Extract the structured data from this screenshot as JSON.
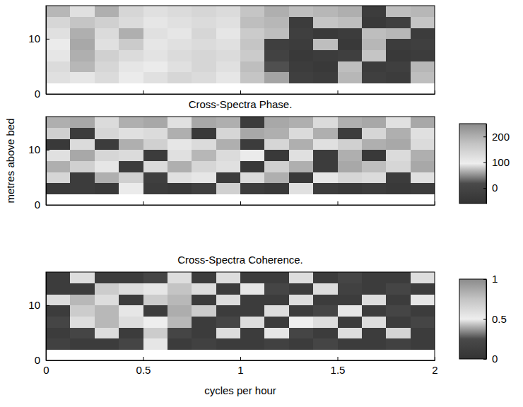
{
  "chart_data": [
    {
      "type": "heatmap",
      "x": [
        0.0625,
        0.1875,
        0.3125,
        0.4375,
        0.5625,
        0.6875,
        0.8125,
        0.9375,
        1.0625,
        1.1875,
        1.3125,
        1.4375,
        1.5625,
        1.6875,
        1.8125,
        1.9375
      ],
      "y": [
        3,
        5,
        7,
        9,
        11,
        13,
        15
      ],
      "values": [
        [
          120,
          110,
          130,
          100,
          120,
          140,
          130,
          110,
          170,
          60,
          -20,
          -30,
          190,
          -20,
          -30,
          180
        ],
        [
          130,
          190,
          140,
          110,
          100,
          120,
          140,
          120,
          180,
          20,
          -30,
          -40,
          180,
          -30,
          -20,
          190
        ],
        [
          110,
          200,
          150,
          130,
          90,
          130,
          140,
          130,
          160,
          -10,
          -40,
          -30,
          -20,
          170,
          -40,
          -30
        ],
        [
          100,
          210,
          120,
          160,
          110,
          120,
          130,
          120,
          170,
          -20,
          -30,
          180,
          -40,
          190,
          -30,
          -20
        ],
        [
          120,
          200,
          130,
          200,
          120,
          110,
          140,
          110,
          160,
          180,
          -20,
          -40,
          -30,
          180,
          190,
          -30
        ],
        [
          140,
          170,
          150,
          130,
          110,
          120,
          130,
          120,
          180,
          190,
          -30,
          170,
          180,
          -40,
          -20,
          170
        ],
        [
          190,
          120,
          200,
          140,
          120,
          130,
          140,
          130,
          170,
          200,
          180,
          190,
          200,
          -30,
          180,
          190
        ]
      ],
      "xlim": [
        0,
        2
      ],
      "ylim": [
        0,
        16
      ],
      "xticks": [
        0,
        0.5,
        1,
        1.5,
        2
      ],
      "yticks": [
        0,
        10
      ],
      "zlim": [
        -60,
        250
      ],
      "tick_labels": "y"
    },
    {
      "type": "heatmap",
      "title": "Cross-Spectra Phase.",
      "ylabel": "metres above bed",
      "x": [
        0.0625,
        0.1875,
        0.3125,
        0.4375,
        0.5625,
        0.6875,
        0.8125,
        0.9375,
        1.0625,
        1.1875,
        1.3125,
        1.4375,
        1.5625,
        1.6875,
        1.8125,
        1.9375
      ],
      "y": [
        3,
        5,
        7,
        9,
        11,
        13,
        15
      ],
      "values": [
        [
          -40,
          -30,
          -40,
          100,
          -30,
          -40,
          -20,
          150,
          -30,
          -40,
          120,
          -30,
          -40,
          -30,
          -40,
          -30
        ],
        [
          140,
          -30,
          200,
          150,
          -20,
          120,
          110,
          -30,
          130,
          200,
          -40,
          110,
          140,
          130,
          -30,
          120
        ],
        [
          200,
          150,
          110,
          -30,
          130,
          200,
          140,
          120,
          -40,
          150,
          200,
          -30,
          210,
          180,
          140,
          210
        ],
        [
          120,
          210,
          140,
          130,
          -30,
          120,
          190,
          130,
          100,
          -40,
          120,
          -30,
          200,
          -40,
          130,
          200
        ],
        [
          -40,
          130,
          -30,
          200,
          150,
          110,
          130,
          200,
          -30,
          140,
          200,
          120,
          150,
          200,
          210,
          130
        ],
        [
          150,
          -30,
          140,
          120,
          130,
          200,
          -40,
          140,
          210,
          200,
          130,
          200,
          -30,
          140,
          200,
          120
        ],
        [
          200,
          210,
          130,
          200,
          210,
          120,
          210,
          200,
          -30,
          210,
          200,
          130,
          200,
          210,
          120,
          210
        ]
      ],
      "xlim": [
        0,
        2
      ],
      "ylim": [
        0,
        16
      ],
      "xticks": [
        0,
        0.5,
        1,
        1.5,
        2
      ],
      "yticks": [
        0,
        10
      ],
      "zlim": [
        -60,
        250
      ],
      "zticks": [
        0,
        100,
        200
      ],
      "tick_labels": "y"
    },
    {
      "type": "heatmap",
      "title": "Cross-Spectra Coherence.",
      "xlabel": "cycles per hour",
      "x": [
        0.0625,
        0.1875,
        0.3125,
        0.4375,
        0.5625,
        0.6875,
        0.8125,
        0.9375,
        1.0625,
        1.1875,
        1.3125,
        1.4375,
        1.5625,
        1.6875,
        1.8125,
        1.9375
      ],
      "y": [
        3,
        5,
        7,
        9,
        11,
        13,
        15
      ],
      "values": [
        [
          0.15,
          0.1,
          0.1,
          0.2,
          0.55,
          0.1,
          0.15,
          0.1,
          0.1,
          0.15,
          0.1,
          0.2,
          0.1,
          0.1,
          0.15,
          0.1
        ],
        [
          0.1,
          0.2,
          0.6,
          0.1,
          0.7,
          0.2,
          0.1,
          0.6,
          0.1,
          0.55,
          0.2,
          0.1,
          0.6,
          0.1,
          0.65,
          0.1
        ],
        [
          0.2,
          0.6,
          0.8,
          0.6,
          0.5,
          0.8,
          0.1,
          0.2,
          0.6,
          0.1,
          0.5,
          0.6,
          0.1,
          0.6,
          0.1,
          0.2
        ],
        [
          0.1,
          0.7,
          0.8,
          0.55,
          0.1,
          0.85,
          0.7,
          0.1,
          0.1,
          0.6,
          0.1,
          0.2,
          0.55,
          0.1,
          0.2,
          0.1
        ],
        [
          0.6,
          0.8,
          0.6,
          0.1,
          0.7,
          0.8,
          0.1,
          0.6,
          0.1,
          0.1,
          0.6,
          0.1,
          0.1,
          0.6,
          0.1,
          0.55
        ],
        [
          0.1,
          0.1,
          0.7,
          0.6,
          0.55,
          0.75,
          0.6,
          0.1,
          0.55,
          0.2,
          0.1,
          0.6,
          0.15,
          0.1,
          0.2,
          0.1
        ],
        [
          0.1,
          0.6,
          0.1,
          0.1,
          0.2,
          0.6,
          0.1,
          0.6,
          0.1,
          0.1,
          0.6,
          0.1,
          0.2,
          0.1,
          0.1,
          0.6
        ]
      ],
      "xlim": [
        0,
        2
      ],
      "ylim": [
        0,
        16
      ],
      "xticks": [
        0,
        0.5,
        1,
        1.5,
        2
      ],
      "yticks": [
        0,
        10
      ],
      "zlim": [
        0,
        1
      ],
      "zticks": [
        0,
        0.5,
        1
      ]
    }
  ]
}
